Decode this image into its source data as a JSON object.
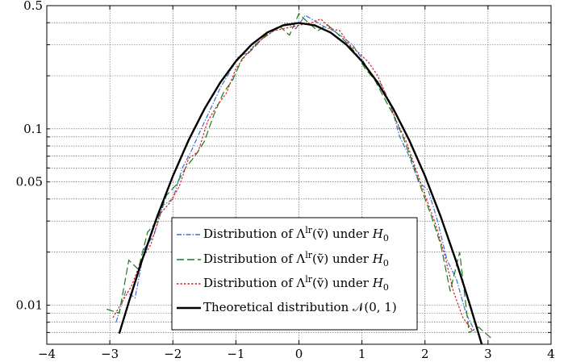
{
  "chart_data": {
    "type": "line",
    "y_scale": "log",
    "xlim": [
      -4,
      4
    ],
    "ylim": [
      0.006,
      0.5
    ],
    "grid": true,
    "legend_position": "bottom-center",
    "x_ticks": [
      -4,
      -3,
      -2,
      -1,
      0,
      1,
      2,
      3,
      4
    ],
    "x_tick_labels": [
      "−4",
      "−3",
      "−2",
      "−1",
      "0",
      "1",
      "2",
      "3",
      "4"
    ],
    "y_ticks_labeled": [
      0.01,
      0.05,
      0.1,
      0.5
    ],
    "y_tick_labels": [
      "0.01",
      "0.05",
      "0.1",
      "0.5"
    ],
    "y_grid": [
      0.007,
      0.008,
      0.009,
      0.01,
      0.02,
      0.03,
      0.04,
      0.05,
      0.06,
      0.07,
      0.08,
      0.09,
      0.1,
      0.2,
      0.3,
      0.4,
      0.5
    ],
    "series": [
      {
        "name": "Distribution of Λ^lr(ṽ) under H_0",
        "color": "#3a6fd8",
        "dash": "6,2,1.5,2",
        "x": [
          -2.9,
          -2.75,
          -2.6,
          -2.45,
          -2.3,
          -2.15,
          -2.0,
          -1.85,
          -1.7,
          -1.55,
          -1.4,
          -1.25,
          -1.1,
          -0.95,
          -0.8,
          -0.65,
          -0.5,
          -0.35,
          -0.2,
          -0.05,
          0.1,
          0.25,
          0.4,
          0.55,
          0.7,
          0.85,
          1.0,
          1.15,
          1.3,
          1.45,
          1.6,
          1.75,
          1.9,
          2.05,
          2.2,
          2.35,
          2.5,
          2.65,
          2.8
        ],
        "y": [
          0.008,
          0.012,
          0.011,
          0.021,
          0.025,
          0.037,
          0.04,
          0.06,
          0.076,
          0.1,
          0.13,
          0.17,
          0.21,
          0.26,
          0.27,
          0.31,
          0.34,
          0.37,
          0.4,
          0.37,
          0.44,
          0.41,
          0.38,
          0.36,
          0.33,
          0.3,
          0.25,
          0.2,
          0.18,
          0.14,
          0.09,
          0.07,
          0.05,
          0.045,
          0.03,
          0.018,
          0.014,
          0.009,
          0.007
        ]
      },
      {
        "name": "Distribution of Λ^lr(ṽ) under H_0",
        "color": "#1a7a1a",
        "dash": "9,4",
        "x": [
          -3.05,
          -2.85,
          -2.7,
          -2.55,
          -2.4,
          -2.25,
          -2.1,
          -1.95,
          -1.8,
          -1.65,
          -1.5,
          -1.35,
          -1.2,
          -1.05,
          -0.9,
          -0.75,
          -0.6,
          -0.45,
          -0.3,
          -0.15,
          0.0,
          0.15,
          0.3,
          0.45,
          0.6,
          0.75,
          0.9,
          1.05,
          1.2,
          1.35,
          1.5,
          1.65,
          1.8,
          1.95,
          2.1,
          2.25,
          2.4,
          2.55,
          2.7,
          2.85,
          3.05
        ],
        "y": [
          0.0095,
          0.009,
          0.018,
          0.016,
          0.026,
          0.03,
          0.042,
          0.048,
          0.06,
          0.07,
          0.085,
          0.12,
          0.16,
          0.19,
          0.25,
          0.28,
          0.32,
          0.36,
          0.38,
          0.34,
          0.45,
          0.4,
          0.36,
          0.39,
          0.35,
          0.31,
          0.27,
          0.22,
          0.19,
          0.15,
          0.12,
          0.09,
          0.065,
          0.045,
          0.032,
          0.022,
          0.012,
          0.02,
          0.007,
          0.0075,
          0.0065
        ]
      },
      {
        "name": "Distribution of Λ^lr(ṽ) under H_0",
        "color": "#d42020",
        "dash": "2.5,2",
        "x": [
          -2.95,
          -2.8,
          -2.65,
          -2.5,
          -2.35,
          -2.2,
          -2.05,
          -1.9,
          -1.75,
          -1.6,
          -1.45,
          -1.3,
          -1.15,
          -1.0,
          -0.85,
          -0.7,
          -0.55,
          -0.4,
          -0.25,
          -0.1,
          0.05,
          0.2,
          0.35,
          0.5,
          0.65,
          0.8,
          0.95,
          1.1,
          1.25,
          1.4,
          1.55,
          1.7,
          1.85,
          2.0,
          2.15,
          2.3,
          2.45,
          2.6,
          2.75
        ],
        "y": [
          0.0085,
          0.0105,
          0.013,
          0.018,
          0.022,
          0.033,
          0.038,
          0.047,
          0.068,
          0.074,
          0.11,
          0.135,
          0.16,
          0.22,
          0.26,
          0.3,
          0.33,
          0.36,
          0.37,
          0.38,
          0.39,
          0.4,
          0.42,
          0.37,
          0.36,
          0.3,
          0.27,
          0.24,
          0.2,
          0.15,
          0.11,
          0.085,
          0.06,
          0.042,
          0.03,
          0.02,
          0.012,
          0.0085,
          0.0072
        ]
      },
      {
        "name": "Theoretical distribution N(0, 1)",
        "color": "#000000",
        "dash": "none",
        "x": [
          -2.85,
          -2.7,
          -2.5,
          -2.25,
          -2.0,
          -1.75,
          -1.5,
          -1.25,
          -1.0,
          -0.75,
          -0.5,
          -0.25,
          0.0,
          0.25,
          0.5,
          0.75,
          1.0,
          1.25,
          1.5,
          1.75,
          2.0,
          2.25,
          2.5,
          2.7,
          2.9,
          3.0
        ],
        "y": [
          0.0069,
          0.0104,
          0.0175,
          0.0317,
          0.054,
          0.0863,
          0.1295,
          0.1826,
          0.242,
          0.3011,
          0.3521,
          0.3867,
          0.3989,
          0.3867,
          0.3521,
          0.3011,
          0.242,
          0.1826,
          0.1295,
          0.0863,
          0.054,
          0.0317,
          0.0175,
          0.0104,
          0.006,
          0.0044
        ]
      }
    ],
    "legend": [
      {
        "prefix": "Distribution of Λ",
        "sup": "lr",
        "mid": "(ṽ) under ",
        "h": "H",
        "sub": "0"
      },
      {
        "prefix": "Distribution of Λ",
        "sup": "lr",
        "mid": "(ṽ) under ",
        "h": "H",
        "sub": "0"
      },
      {
        "prefix": "Distribution of Λ",
        "sup": "lr",
        "mid": "(ṽ) under ",
        "h": "H",
        "sub": "0"
      },
      {
        "text": "Theoretical distribution 𝒩(0, 1)"
      }
    ]
  }
}
